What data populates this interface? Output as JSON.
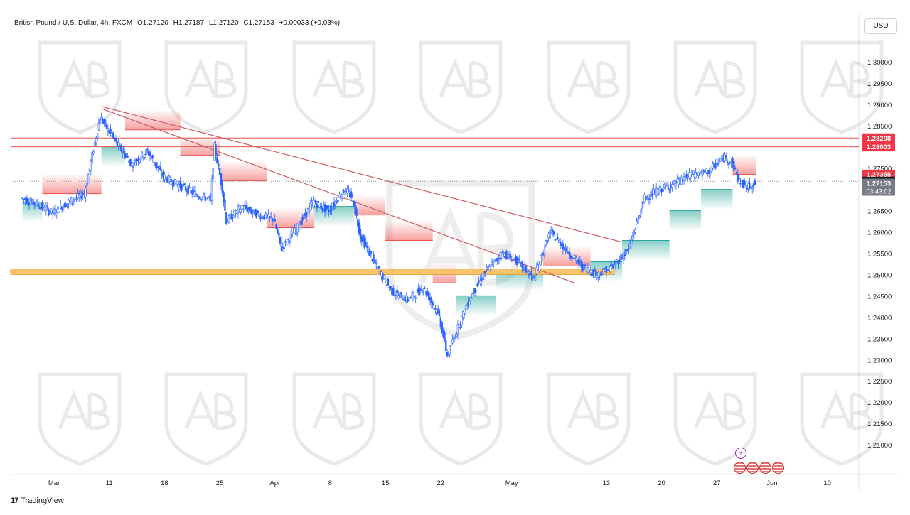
{
  "header": {
    "symbol": "British Pound / U.S. Dollar, 4h, FXCM",
    "open": "O1.27120",
    "high": "H1.27187",
    "low": "L1.27120",
    "close": "C1.27153",
    "change": "+0.00033 (+0.03%)"
  },
  "currency_button": "USD",
  "footer": {
    "logo": "17",
    "brand": "TradingView"
  },
  "event_icon": "⚡",
  "price_tags": {
    "resistance_top": "1.28208",
    "resistance_bottom": "1.28003",
    "band_upper": "1.27355",
    "prev_level": "1.27191",
    "last_price": "1.27153",
    "countdown": "03:43:02"
  },
  "colors": {
    "bull": "#26a69a",
    "bear": "#ef5350",
    "candle": "#2962ff",
    "zone": "#f7c46c",
    "trend": "#d35b63",
    "grid_text": "#131722"
  },
  "chart_data": {
    "type": "candlestick",
    "title": "British Pound / U.S. Dollar, 4h, FXCM",
    "y_axis": {
      "range": [
        1.2035,
        1.3065
      ],
      "ticks": [
        1.3,
        1.295,
        1.29,
        1.285,
        1.28,
        1.275,
        1.27,
        1.265,
        1.26,
        1.255,
        1.25,
        1.245,
        1.24,
        1.235,
        1.23,
        1.225,
        1.22,
        1.215,
        1.21
      ],
      "tick_labels": [
        "1.30000",
        "1.29500",
        "1.29000",
        "1.28500",
        "1.28000",
        "1.27500",
        "1.27000",
        "1.26500",
        "1.26000",
        "1.25500",
        "1.25000",
        "1.24500",
        "1.24000",
        "1.23500",
        "1.23000",
        "1.22500",
        "1.22000",
        "1.21500",
        "1.21000"
      ]
    },
    "x_axis": {
      "labels": [
        "Mar",
        "11",
        "18",
        "25",
        "Apr",
        "8",
        "15",
        "22",
        "May",
        "13",
        "20",
        "27",
        "Jun",
        "10"
      ],
      "label_days": [
        4,
        11,
        18,
        25,
        32,
        39,
        46,
        53,
        62,
        74,
        81,
        88,
        95,
        102
      ],
      "range_days": [
        -1.5,
        106
      ]
    },
    "price_path": [
      [
        0,
        1.268
      ],
      [
        2,
        1.2665
      ],
      [
        4,
        1.2645
      ],
      [
        6,
        1.267
      ],
      [
        8,
        1.269
      ],
      [
        10,
        1.287
      ],
      [
        12,
        1.281
      ],
      [
        14,
        1.276
      ],
      [
        16,
        1.279
      ],
      [
        18,
        1.273
      ],
      [
        20,
        1.271
      ],
      [
        22,
        1.269
      ],
      [
        24,
        1.2675
      ],
      [
        24.5,
        1.28
      ],
      [
        25.5,
        1.27
      ],
      [
        26,
        1.2625
      ],
      [
        28,
        1.266
      ],
      [
        30,
        1.264
      ],
      [
        32,
        1.263
      ],
      [
        33,
        1.256
      ],
      [
        35,
        1.261
      ],
      [
        37,
        1.267
      ],
      [
        39,
        1.265
      ],
      [
        41,
        1.27
      ],
      [
        42,
        1.268
      ],
      [
        43,
        1.259
      ],
      [
        45,
        1.252
      ],
      [
        47,
        1.246
      ],
      [
        49,
        1.244
      ],
      [
        51,
        1.247
      ],
      [
        53,
        1.24
      ],
      [
        54,
        1.231
      ],
      [
        55,
        1.236
      ],
      [
        57,
        1.245
      ],
      [
        59,
        1.251
      ],
      [
        61,
        1.255
      ],
      [
        63,
        1.253
      ],
      [
        65,
        1.249
      ],
      [
        67,
        1.26
      ],
      [
        69,
        1.256
      ],
      [
        71,
        1.252
      ],
      [
        73,
        1.25
      ],
      [
        75,
        1.252
      ],
      [
        77,
        1.256
      ],
      [
        79,
        1.268
      ],
      [
        81,
        1.27
      ],
      [
        83,
        1.2715
      ],
      [
        85,
        1.2735
      ],
      [
        87,
        1.274
      ],
      [
        89,
        1.2775
      ],
      [
        90,
        1.2765
      ],
      [
        91,
        1.272
      ],
      [
        92,
        1.2705
      ],
      [
        93,
        1.2715
      ]
    ],
    "support_resistance_band_steps": [
      {
        "from": 0,
        "to": 2.5,
        "level": 1.267,
        "side": "bull"
      },
      {
        "from": 2.5,
        "to": 10,
        "level": 1.269,
        "side": "bear"
      },
      {
        "from": 10,
        "to": 13,
        "level": 1.28,
        "side": "bull"
      },
      {
        "from": 13,
        "to": 20,
        "level": 1.284,
        "side": "bear"
      },
      {
        "from": 20,
        "to": 25,
        "level": 1.278,
        "side": "bear"
      },
      {
        "from": 25,
        "to": 31,
        "level": 1.272,
        "side": "bear"
      },
      {
        "from": 31,
        "to": 37,
        "level": 1.261,
        "side": "bear"
      },
      {
        "from": 37,
        "to": 42,
        "level": 1.266,
        "side": "bull"
      },
      {
        "from": 42,
        "to": 46,
        "level": 1.264,
        "side": "bear"
      },
      {
        "from": 46,
        "to": 52,
        "level": 1.258,
        "side": "bear"
      },
      {
        "from": 52,
        "to": 55,
        "level": 1.248,
        "side": "bear"
      },
      {
        "from": 55,
        "to": 60,
        "level": 1.245,
        "side": "bull"
      },
      {
        "from": 60,
        "to": 66,
        "level": 1.251,
        "side": "bull"
      },
      {
        "from": 66,
        "to": 72,
        "level": 1.252,
        "side": "bear"
      },
      {
        "from": 72,
        "to": 76,
        "level": 1.253,
        "side": "bull"
      },
      {
        "from": 76,
        "to": 82,
        "level": 1.258,
        "side": "bull"
      },
      {
        "from": 82,
        "to": 86,
        "level": 1.265,
        "side": "bull"
      },
      {
        "from": 86,
        "to": 90,
        "level": 1.27,
        "side": "bull"
      },
      {
        "from": 90,
        "to": 93,
        "level": 1.2735,
        "side": "bear"
      }
    ],
    "horizontal_levels": [
      1.28208,
      1.28003
    ],
    "zone": {
      "from_day": -1.5,
      "to_day": 75,
      "low": 1.25,
      "high": 1.2513
    },
    "trendlines": [
      {
        "from": [
          10,
          1.2895
        ],
        "to": [
          76,
          1.2576
        ]
      },
      {
        "from": [
          10,
          1.289
        ],
        "to": [
          70,
          1.248
        ]
      }
    ],
    "dotted_level": 1.27191
  }
}
